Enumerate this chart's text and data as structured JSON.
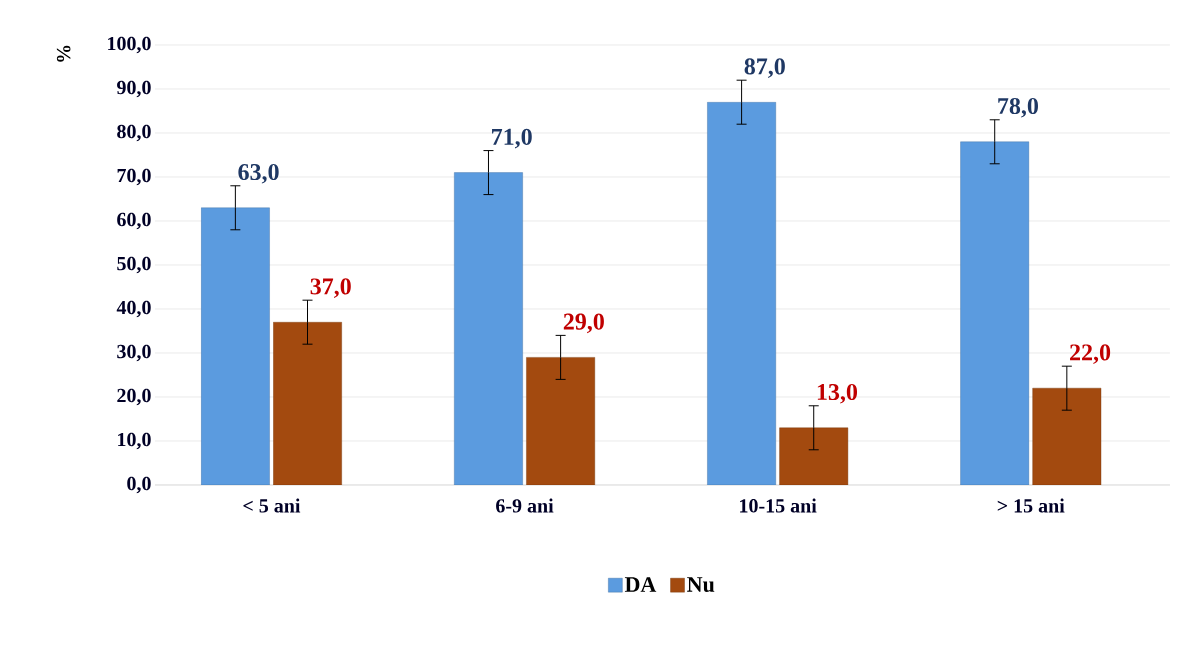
{
  "chart_data": {
    "type": "bar",
    "ylabel": "%",
    "categories": [
      "< 5 ani",
      "6-9 ani",
      "10-15 ani",
      "> 15 ani"
    ],
    "series": [
      {
        "name": "DA",
        "color": "#5b9bdf",
        "values": [
          63,
          71,
          87,
          78
        ],
        "errors": [
          5,
          5,
          5,
          5
        ],
        "value_labels": [
          "63,0",
          "71,0",
          "87,0",
          "78,0"
        ]
      },
      {
        "name": "Nu",
        "color": "#a34a0f",
        "values": [
          37,
          29,
          13,
          22
        ],
        "errors": [
          5,
          5,
          5,
          5
        ],
        "value_labels": [
          "37,0",
          "29,0",
          "13,0",
          "22,0"
        ]
      }
    ],
    "ylim": [
      0,
      100
    ],
    "yticks": [
      {
        "value": 0,
        "label": "0,0"
      },
      {
        "value": 10,
        "label": "10,0"
      },
      {
        "value": 20,
        "label": "20,0"
      },
      {
        "value": 30,
        "label": "30,0"
      },
      {
        "value": 40,
        "label": "40,0"
      },
      {
        "value": 50,
        "label": "50,0"
      },
      {
        "value": 60,
        "label": "60,0"
      },
      {
        "value": 70,
        "label": "70,0"
      },
      {
        "value": 80,
        "label": "80,0"
      },
      {
        "value": 90,
        "label": "90,0"
      },
      {
        "value": 100,
        "label": "100,0"
      }
    ],
    "grid": "y",
    "legend": "bottom"
  }
}
